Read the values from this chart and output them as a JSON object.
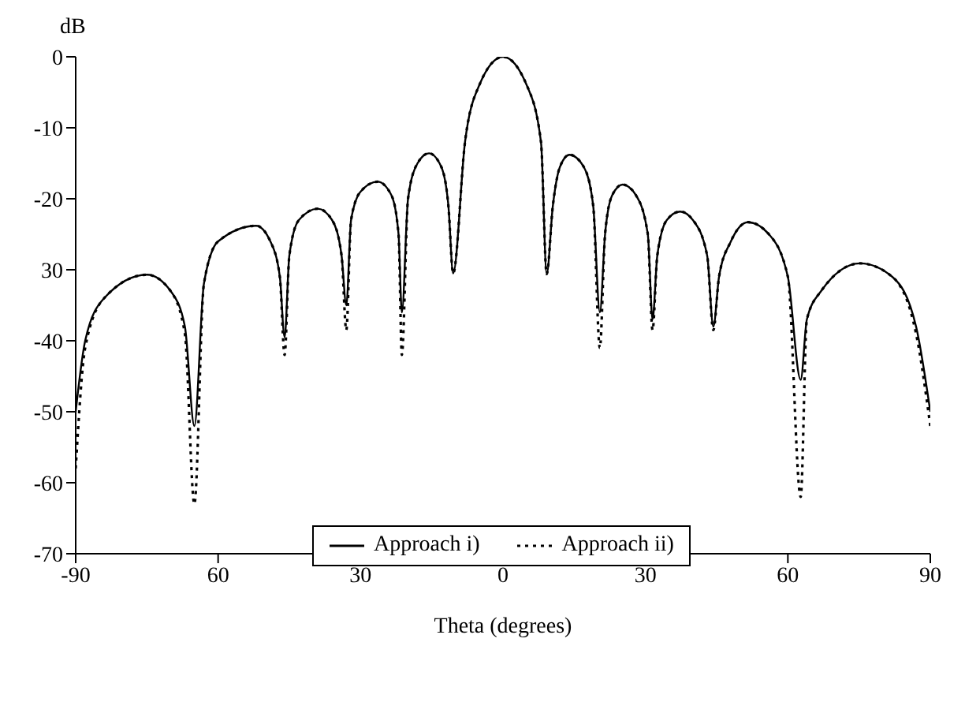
{
  "chart_data": {
    "type": "line",
    "xlabel": "Theta (degrees)",
    "ylabel": "dB",
    "x": [
      -90,
      -88,
      -84,
      -75,
      -70,
      -67,
      -65,
      -63,
      -60,
      -52,
      -49,
      -47,
      -46,
      -45,
      -43,
      -39,
      -36,
      -34,
      -33,
      -32,
      -30,
      -26.4,
      -23.5,
      -22,
      -21.3,
      -20,
      -18,
      -15.6,
      -13,
      -11.5,
      -10.5,
      -8,
      -5,
      0,
      5,
      8,
      9.2,
      10.5,
      12,
      14,
      17,
      19,
      20.4,
      21.5,
      23,
      25.2,
      28,
      30.5,
      31.5,
      32.5,
      34.5,
      37.3,
      40,
      43,
      44.3,
      45.5,
      48,
      51.6,
      56,
      60,
      62.7,
      64,
      67,
      75.2,
      82,
      87,
      90
    ],
    "series": [
      {
        "name": "Approach i)",
        "color": "#000000",
        "line_style": "solid",
        "values": [
          -50,
          -40,
          -34,
          -30.7,
          -33,
          -38,
          -52,
          -32,
          -26,
          -23.8,
          -26,
          -31,
          -39.5,
          -28,
          -23,
          -21.4,
          -23,
          -28,
          -35,
          -23,
          -19,
          -17.6,
          -19.5,
          -25,
          -36,
          -20,
          -15,
          -13.6,
          -15.5,
          -21,
          -30.5,
          -12,
          -4,
          0,
          -4,
          -12,
          -30.6,
          -21,
          -15.5,
          -13.8,
          -15.5,
          -21,
          -36,
          -25,
          -19.5,
          -18,
          -19.5,
          -25,
          -37,
          -28,
          -23,
          -21.8,
          -23,
          -28,
          -38,
          -31,
          -26,
          -23.3,
          -25,
          -31,
          -45.5,
          -37,
          -33,
          -29.1,
          -31,
          -38,
          -50
        ]
      },
      {
        "name": "Approach ii)",
        "color": "#000000",
        "line_style": "dotted",
        "values": [
          -58,
          -41,
          -34,
          -30.7,
          -33,
          -39,
          -63,
          -32,
          -26,
          -23.8,
          -26,
          -31,
          -42,
          -28,
          -23,
          -21.4,
          -23,
          -28,
          -38.5,
          -23,
          -19,
          -17.6,
          -19.5,
          -25,
          -42,
          -20,
          -15,
          -13.6,
          -15.5,
          -21,
          -30.5,
          -12,
          -4,
          0,
          -4,
          -12,
          -30.6,
          -21,
          -15.5,
          -13.8,
          -15.5,
          -21,
          -41,
          -25,
          -19.5,
          -18,
          -19.5,
          -25,
          -38.5,
          -28,
          -23,
          -21.8,
          -23,
          -28,
          -38.5,
          -31,
          -26,
          -23.3,
          -25,
          -31,
          -62,
          -37,
          -33,
          -29.1,
          -31,
          -39,
          -52
        ]
      }
    ],
    "xlim": [
      -90,
      90
    ],
    "xticks": [
      -90,
      {
        "value": -60,
        "label": "60"
      },
      {
        "value": -30,
        "label": "30"
      },
      0,
      30,
      60,
      90
    ],
    "ylim": [
      -70,
      0
    ],
    "yticks": [
      0,
      -10,
      -20,
      {
        "value": -30,
        "label": "30"
      },
      -40,
      -50,
      -60,
      -70
    ],
    "grid": false,
    "legend": "bottom",
    "marker": "none"
  }
}
